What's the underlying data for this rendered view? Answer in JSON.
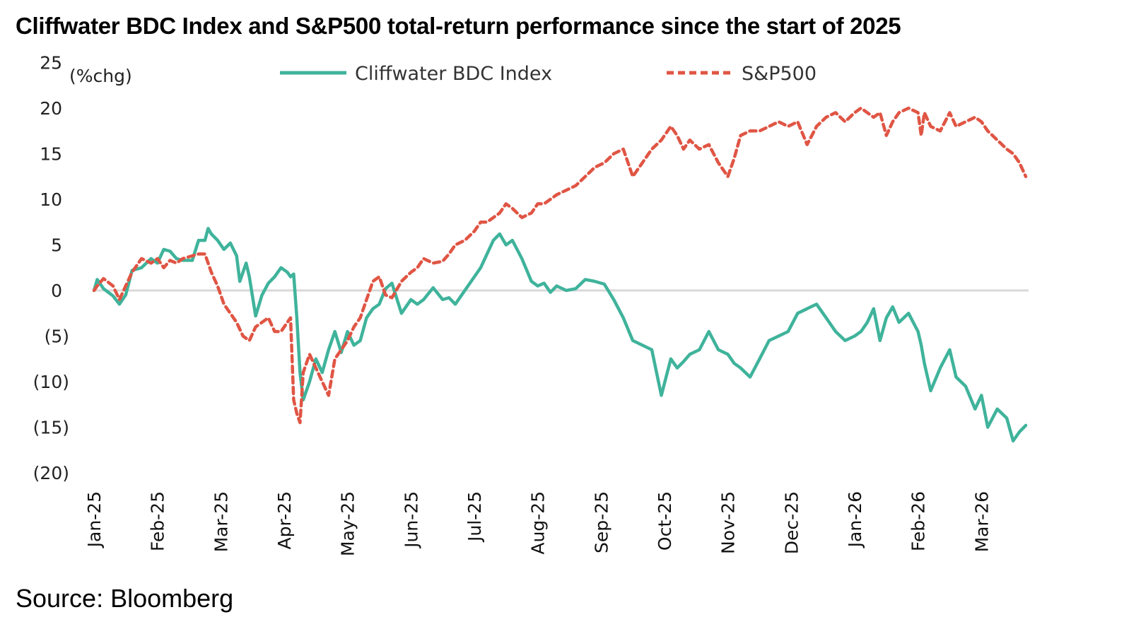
{
  "title": "Cliffwater BDC Index and S&P500 total-return performance since the start of 2025",
  "source": "Source: Bloomberg",
  "chart_data": {
    "type": "line",
    "title": "Cliffwater BDC Index and S&P500 total-return performance since the start of 2025",
    "xlabel": "",
    "ylabel": "(%chg)",
    "ylim": [
      -20,
      25
    ],
    "yticks": [
      25,
      20,
      15,
      10,
      5,
      0,
      -5,
      -10,
      -15,
      -20
    ],
    "ytick_labels": [
      "25",
      "20",
      "15",
      "10",
      "5",
      "0",
      "(5)",
      "(10)",
      "(15)",
      "(20)"
    ],
    "xlim": [
      0,
      14.8
    ],
    "xtick_positions": [
      0,
      1,
      2,
      3,
      4,
      5,
      6,
      7,
      8,
      9,
      10,
      11,
      12,
      13,
      14
    ],
    "xtick_labels": [
      "Jan-25",
      "Feb-25",
      "Mar-25",
      "Apr-25",
      "May-25",
      "Jun-25",
      "Jul-25",
      "Aug-25",
      "Sep-25",
      "Oct-25",
      "Nov-25",
      "Dec-25",
      "Jan-26",
      "Feb-26",
      "Mar-26"
    ],
    "grid": false,
    "zero_line": true,
    "legend_position": "top",
    "series": [
      {
        "name": "Cliffwater BDC Index",
        "color": "#3fb39b",
        "style": "solid",
        "x": [
          0,
          0.05,
          0.15,
          0.3,
          0.4,
          0.5,
          0.6,
          0.75,
          0.9,
          1.0,
          1.1,
          1.2,
          1.3,
          1.4,
          1.55,
          1.65,
          1.75,
          1.8,
          1.85,
          1.95,
          2.05,
          2.15,
          2.25,
          2.3,
          2.4,
          2.45,
          2.55,
          2.65,
          2.75,
          2.85,
          2.95,
          3.05,
          3.1,
          3.15,
          3.2,
          3.25,
          3.3,
          3.4,
          3.5,
          3.6,
          3.7,
          3.8,
          3.9,
          4.0,
          4.1,
          4.2,
          4.3,
          4.4,
          4.5,
          4.6,
          4.7,
          4.85,
          5.0,
          5.1,
          5.2,
          5.35,
          5.5,
          5.6,
          5.7,
          5.85,
          6.0,
          6.1,
          6.2,
          6.3,
          6.4,
          6.5,
          6.6,
          6.75,
          6.9,
          7.0,
          7.1,
          7.2,
          7.3,
          7.45,
          7.6,
          7.75,
          7.9,
          8.05,
          8.2,
          8.35,
          8.5,
          8.65,
          8.8,
          8.95,
          9.1,
          9.2,
          9.3,
          9.4,
          9.55,
          9.7,
          9.85,
          10.0,
          10.1,
          10.2,
          10.35,
          10.5,
          10.65,
          10.8,
          10.95,
          11.1,
          11.25,
          11.4,
          11.55,
          11.7,
          11.85,
          12.0,
          12.1,
          12.2,
          12.3,
          12.4,
          12.5,
          12.6,
          12.7,
          12.85,
          13.0,
          13.05,
          13.1,
          13.2,
          13.35,
          13.5,
          13.6,
          13.75,
          13.9,
          14.0,
          14.1,
          14.25,
          14.4,
          14.5,
          14.6,
          14.7
        ],
        "values": [
          0,
          1.2,
          0.2,
          -0.6,
          -1.5,
          -0.5,
          2.2,
          2.5,
          3.5,
          3.0,
          4.5,
          4.3,
          3.5,
          3.3,
          3.3,
          5.5,
          5.5,
          6.8,
          6.2,
          5.5,
          4.5,
          5.2,
          3.8,
          1.0,
          3.0,
          1.5,
          -2.8,
          -0.5,
          0.8,
          1.5,
          2.5,
          2.0,
          1.5,
          1.8,
          -3.0,
          -9.0,
          -12.0,
          -10.0,
          -7.5,
          -9.0,
          -6.5,
          -4.5,
          -6.8,
          -4.5,
          -6.0,
          -5.5,
          -3.0,
          -2.0,
          -1.5,
          0.2,
          0.8,
          -2.5,
          -1.0,
          -1.5,
          -1.0,
          0.3,
          -1.0,
          -0.8,
          -1.5,
          0.0,
          1.5,
          2.5,
          4.0,
          5.5,
          6.2,
          5.0,
          5.5,
          3.5,
          1.0,
          0.5,
          0.8,
          -0.2,
          0.5,
          0.0,
          0.2,
          1.2,
          1.0,
          0.7,
          -1.0,
          -3.0,
          -5.5,
          -6.0,
          -6.5,
          -11.5,
          -7.5,
          -8.5,
          -7.8,
          -7.0,
          -6.5,
          -4.5,
          -6.5,
          -7.0,
          -8.0,
          -8.5,
          -9.5,
          -7.5,
          -5.5,
          -5.0,
          -4.5,
          -2.5,
          -2.0,
          -1.5,
          -3.0,
          -4.5,
          -5.5,
          -5.0,
          -4.5,
          -3.5,
          -2.0,
          -5.5,
          -3.0,
          -1.8,
          -3.5,
          -2.5,
          -4.5,
          -6.0,
          -8.0,
          -11.0,
          -8.5,
          -6.5,
          -9.5,
          -10.5,
          -13.0,
          -11.5,
          -15.0,
          -13.0,
          -14.0,
          -16.5,
          -15.5,
          -14.8
        ]
      },
      {
        "name": "S&P500",
        "color": "#e05544",
        "style": "dashed",
        "x": [
          0,
          0.05,
          0.15,
          0.3,
          0.4,
          0.5,
          0.6,
          0.75,
          0.9,
          1.0,
          1.1,
          1.2,
          1.3,
          1.4,
          1.55,
          1.65,
          1.75,
          1.85,
          1.95,
          2.05,
          2.15,
          2.25,
          2.35,
          2.45,
          2.55,
          2.65,
          2.75,
          2.85,
          2.95,
          3.05,
          3.1,
          3.15,
          3.2,
          3.25,
          3.3,
          3.4,
          3.5,
          3.6,
          3.7,
          3.8,
          3.9,
          4.0,
          4.1,
          4.2,
          4.3,
          4.4,
          4.5,
          4.6,
          4.7,
          4.85,
          5.0,
          5.1,
          5.2,
          5.35,
          5.5,
          5.6,
          5.7,
          5.85,
          6.0,
          6.1,
          6.2,
          6.3,
          6.4,
          6.5,
          6.6,
          6.75,
          6.9,
          7.0,
          7.1,
          7.2,
          7.3,
          7.45,
          7.6,
          7.75,
          7.9,
          8.05,
          8.2,
          8.35,
          8.5,
          8.65,
          8.8,
          8.95,
          9.1,
          9.2,
          9.3,
          9.4,
          9.55,
          9.7,
          9.85,
          10.0,
          10.1,
          10.2,
          10.35,
          10.5,
          10.65,
          10.8,
          10.95,
          11.1,
          11.25,
          11.4,
          11.55,
          11.7,
          11.85,
          12.0,
          12.1,
          12.2,
          12.3,
          12.4,
          12.5,
          12.6,
          12.7,
          12.85,
          13.0,
          13.05,
          13.1,
          13.2,
          13.35,
          13.5,
          13.6,
          13.75,
          13.9,
          14.0,
          14.1,
          14.25,
          14.4,
          14.5,
          14.6,
          14.7
        ],
        "values": [
          0,
          0.5,
          1.3,
          0.5,
          -1.0,
          0.5,
          2.0,
          3.5,
          3.0,
          3.5,
          2.5,
          3.3,
          3.0,
          3.5,
          3.8,
          4.0,
          4.0,
          2.0,
          0.5,
          -1.5,
          -2.5,
          -3.5,
          -5.0,
          -5.5,
          -4.0,
          -3.5,
          -3.0,
          -4.5,
          -4.5,
          -3.5,
          -3.0,
          -12.0,
          -13.5,
          -14.5,
          -9.0,
          -7.0,
          -8.5,
          -10.0,
          -11.5,
          -7.5,
          -6.5,
          -5.5,
          -4.0,
          -3.0,
          -1.0,
          1.0,
          1.5,
          -0.5,
          -0.8,
          1.0,
          2.0,
          2.5,
          3.5,
          3.0,
          3.2,
          4.0,
          5.0,
          5.5,
          6.5,
          7.5,
          7.5,
          8.0,
          8.5,
          9.5,
          9.0,
          8.0,
          8.5,
          9.5,
          9.5,
          10.0,
          10.5,
          11.0,
          11.5,
          12.5,
          13.5,
          14.0,
          15.0,
          15.5,
          12.5,
          14.0,
          15.5,
          16.5,
          18.0,
          17.0,
          15.5,
          16.5,
          15.5,
          16.0,
          14.0,
          12.5,
          14.5,
          17.0,
          17.5,
          17.5,
          18.0,
          18.5,
          18.0,
          18.5,
          16.0,
          18.0,
          19.0,
          19.5,
          18.5,
          19.5,
          20.0,
          19.5,
          19.0,
          19.5,
          17.0,
          18.5,
          19.5,
          20.0,
          19.5,
          17.0,
          19.5,
          18.0,
          17.5,
          19.5,
          18.0,
          18.5,
          19.0,
          18.5,
          17.5,
          16.5,
          15.5,
          15.0,
          14.0,
          12.5
        ]
      }
    ]
  }
}
